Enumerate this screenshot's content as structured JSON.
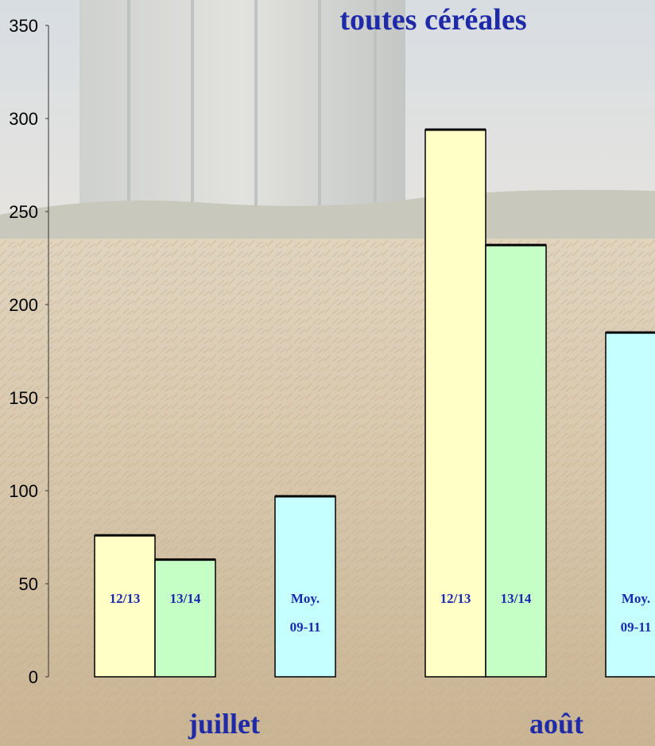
{
  "chart_data": {
    "type": "bar",
    "title": "toutes céréales",
    "categories": [
      "juillet",
      "août"
    ],
    "series": [
      {
        "name": "12/13",
        "values": [
          76,
          294
        ]
      },
      {
        "name": "13/14",
        "values": [
          63,
          232
        ]
      },
      {
        "name": "Moy. 09-11",
        "label_lines": [
          "Moy.",
          "09-11"
        ],
        "values": [
          97,
          185
        ]
      }
    ],
    "yticks": [
      0,
      50,
      100,
      150,
      200,
      250,
      300,
      350
    ],
    "ylim": [
      0,
      350
    ],
    "grid": false,
    "colors": {
      "12/13": "#ffffc6",
      "13/14": "#c6ffc6",
      "Moy. 09-11": "#c6ffff",
      "text": "#1e2aa8"
    }
  }
}
